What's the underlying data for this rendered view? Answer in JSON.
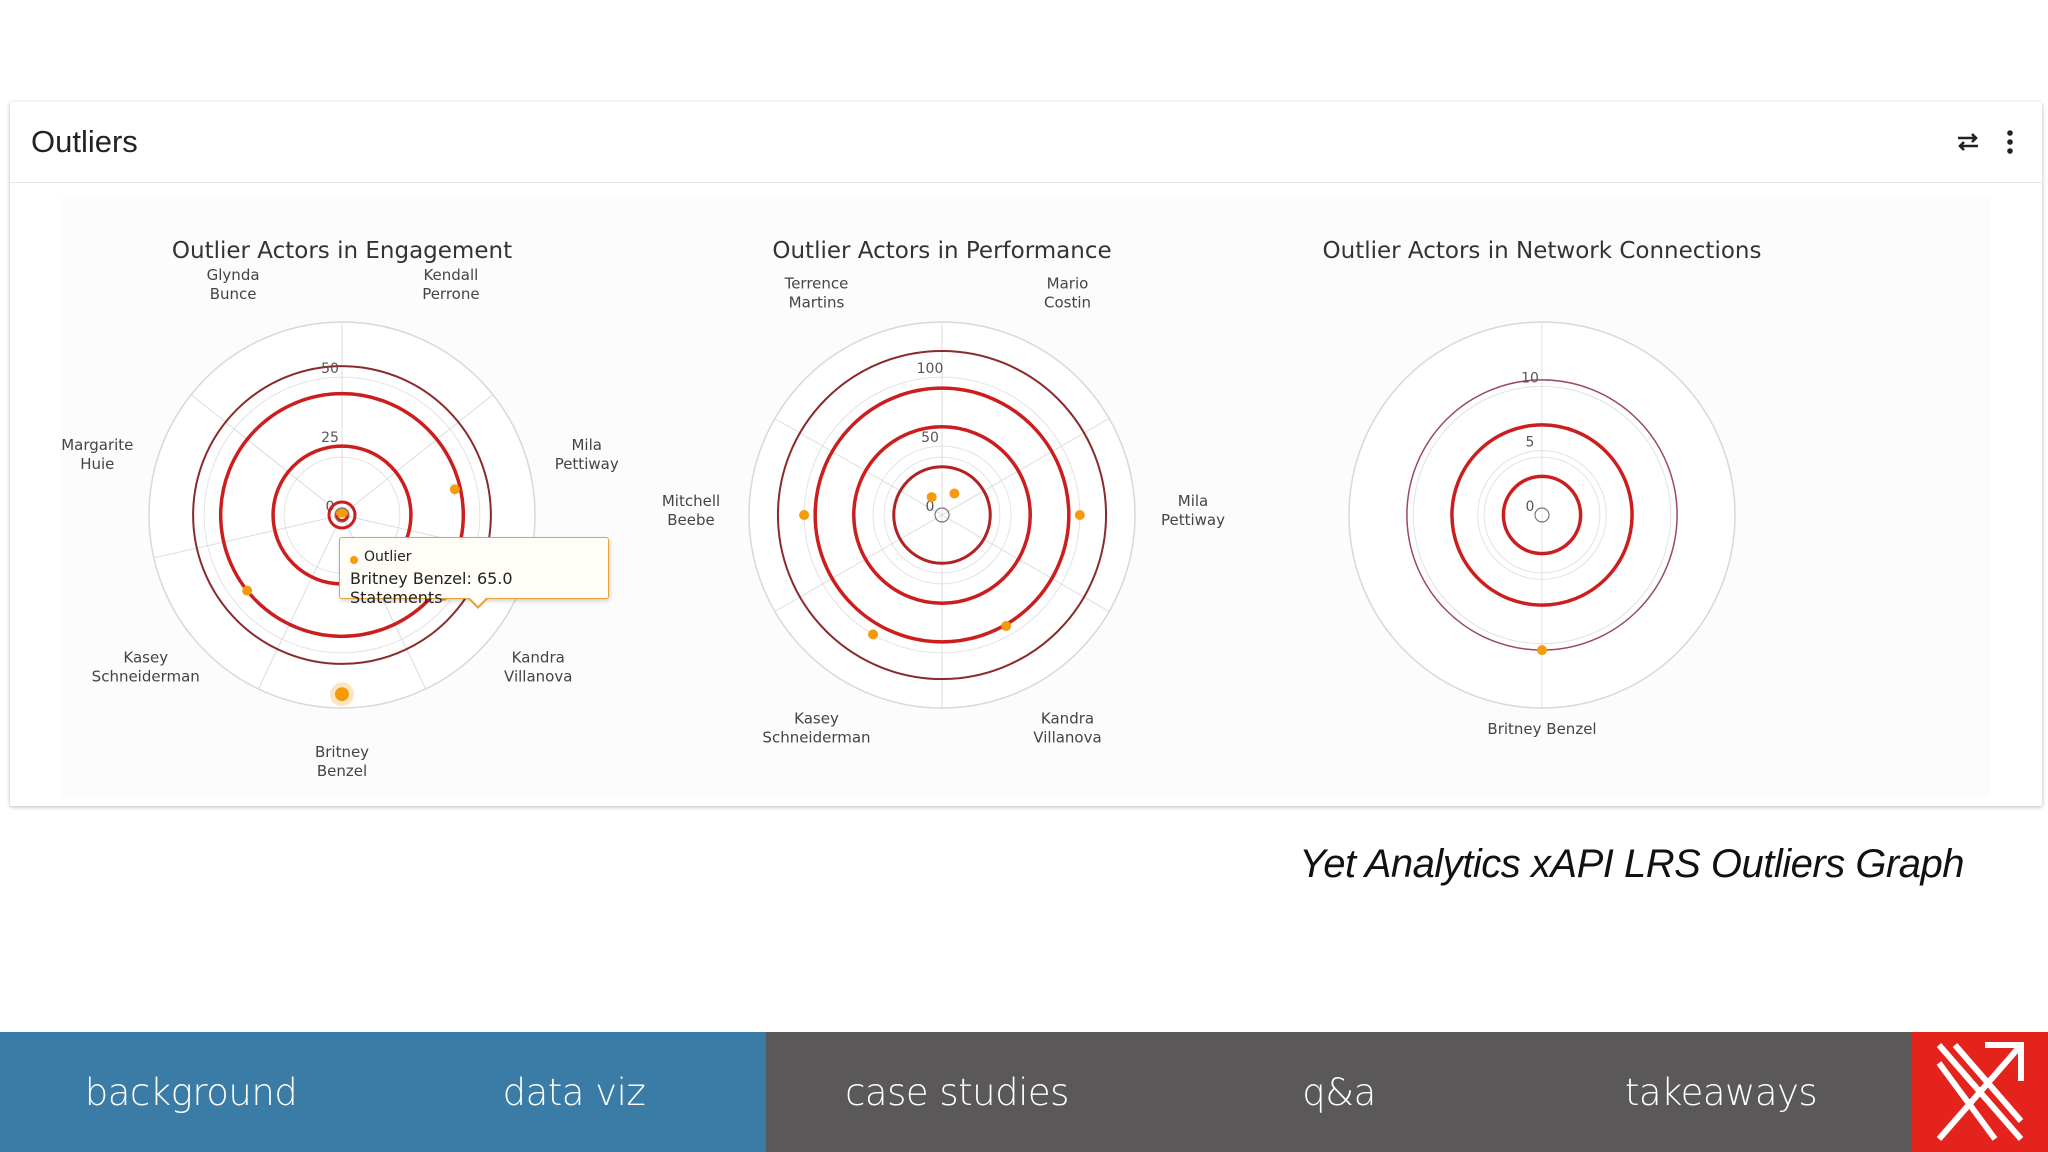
{
  "panel": {
    "title": "Outliers",
    "swap_icon": "swap-arrows-icon",
    "more_icon": "more-vertical-icon"
  },
  "chart_data": [
    {
      "type": "polar-radar",
      "title": "Outlier Actors in Engagement",
      "categories": [
        "Kendall Perrone",
        "Mila Pettiway",
        "Kandra Villanova",
        "Britney Benzel",
        "Kasey Schneiderman",
        "Margarite Huie",
        "Glynda Bunce"
      ],
      "category_lines": [
        [
          "Kendall",
          "Perrone"
        ],
        [
          "Mila",
          "Pettiway"
        ],
        [
          "Kandra",
          "Villanova"
        ],
        [
          "Britney",
          "Benzel"
        ],
        [
          "Kasey",
          "Schneiderman"
        ],
        [
          "Margarite",
          "Huie"
        ],
        [
          "Glynda",
          "Bunce"
        ]
      ],
      "ticks": [
        "0",
        "25",
        "50"
      ],
      "tick_values": [
        0,
        25,
        50
      ],
      "rmax": 70,
      "threshold_rings": [
        {
          "value": 2,
          "color": "#cc1e1e",
          "width": 3
        },
        {
          "value": 25,
          "color": "#cc1e1e",
          "width": 3.5
        },
        {
          "value": 44,
          "color": "#cc1e1e",
          "width": 3.5
        },
        {
          "value": 54,
          "color": "#8a2b2b",
          "width": 2
        }
      ],
      "series": [
        {
          "name": "Outlier",
          "color": "#f49a0b",
          "points": [
            {
              "category": "Mila Pettiway",
              "value": 42
            },
            {
              "category": "Kandra Villanova",
              "value": 47
            },
            {
              "category": "Britney Benzel",
              "value": 65
            },
            {
              "category": "Kasey Schneiderman",
              "value": 44
            },
            {
              "category": "Glynda Bunce",
              "value": 1
            },
            {
              "category": "Kendall Perrone",
              "value": 1
            }
          ]
        }
      ]
    },
    {
      "type": "polar-radar",
      "title": "Outlier Actors in Performance",
      "categories": [
        "Mario Costin",
        "Mila Pettiway",
        "Kandra Villanova",
        "Kasey Schneiderman",
        "Mitchell Beebe",
        "Terrence Martins"
      ],
      "category_lines": [
        [
          "Mario",
          "Costin"
        ],
        [
          "Mila",
          "Pettiway"
        ],
        [
          "Kandra",
          "Villanova"
        ],
        [
          "Kasey",
          "Schneiderman"
        ],
        [
          "Mitchell",
          "Beebe"
        ],
        [
          "Terrence",
          "Martins"
        ]
      ],
      "ticks": [
        "0",
        "50",
        "100"
      ],
      "tick_values": [
        0,
        50,
        100
      ],
      "rmax": 140,
      "threshold_rings": [
        {
          "value": 65,
          "color": "#8a2b2b",
          "width": 2
        },
        {
          "value": 63,
          "color": "#cc1e1e",
          "width": 3.5
        },
        {
          "value": 1,
          "color": "#cc1e1e",
          "width": 0
        }
      ],
      "extra_rings": [
        {
          "value": 35,
          "color": "#b22222",
          "width": 3
        },
        {
          "value": 64,
          "color": "#cc1e1e",
          "width": 3.5
        },
        {
          "value": 92,
          "color": "#cc1e1e",
          "width": 3.5
        },
        {
          "value": 119,
          "color": "#8a2b2b",
          "width": 2
        }
      ],
      "series": [
        {
          "name": "Outlier",
          "color": "#f49a0b",
          "points": [
            {
              "category": "Mila Pettiway",
              "value": 100
            },
            {
              "category": "Kandra Villanova",
              "value": 93
            },
            {
              "category": "Kasey Schneiderman",
              "value": 100
            },
            {
              "category": "Mitchell Beebe",
              "value": 100
            },
            {
              "category": "Terrence Martins",
              "value": 15
            },
            {
              "category": "Mario Costin",
              "value": 18
            }
          ]
        }
      ]
    },
    {
      "type": "polar-radar",
      "title": "Outlier Actors in Network Connections",
      "categories": [
        "Britney Benzel"
      ],
      "category_lines": [
        [
          "Britney Benzel"
        ]
      ],
      "ticks": [
        "0",
        "5",
        "10"
      ],
      "tick_values": [
        0,
        5,
        10
      ],
      "rmax": 15,
      "extra_rings": [
        {
          "value": 3,
          "color": "#cc1e1e",
          "width": 3.5
        },
        {
          "value": 7,
          "color": "#cc1e1e",
          "width": 3.5
        },
        {
          "value": 10.5,
          "color": "#9a4a5a",
          "width": 1.5
        }
      ],
      "series": [
        {
          "name": "Outlier",
          "color": "#f49a0b",
          "points": [
            {
              "category": "Britney Benzel",
              "value": 10.5
            }
          ]
        }
      ]
    }
  ],
  "tooltip": {
    "series": "Outlier",
    "text": "Britney Benzel: 65.0 Statements"
  },
  "caption": "Yet Analytics xAPI LRS Outliers Graph",
  "nav": {
    "items": [
      {
        "label": "background",
        "color": "#3a7ca5"
      },
      {
        "label": "data viz",
        "color": "#3a7ca5"
      },
      {
        "label": "case studies",
        "color": "#5b585a"
      },
      {
        "label": "q&a",
        "color": "#5b585a"
      },
      {
        "label": "takeaways",
        "color": "#5b585a"
      }
    ],
    "logo_icon": "yet-analytics-logo-icon",
    "logo_color": "#e4231d"
  }
}
